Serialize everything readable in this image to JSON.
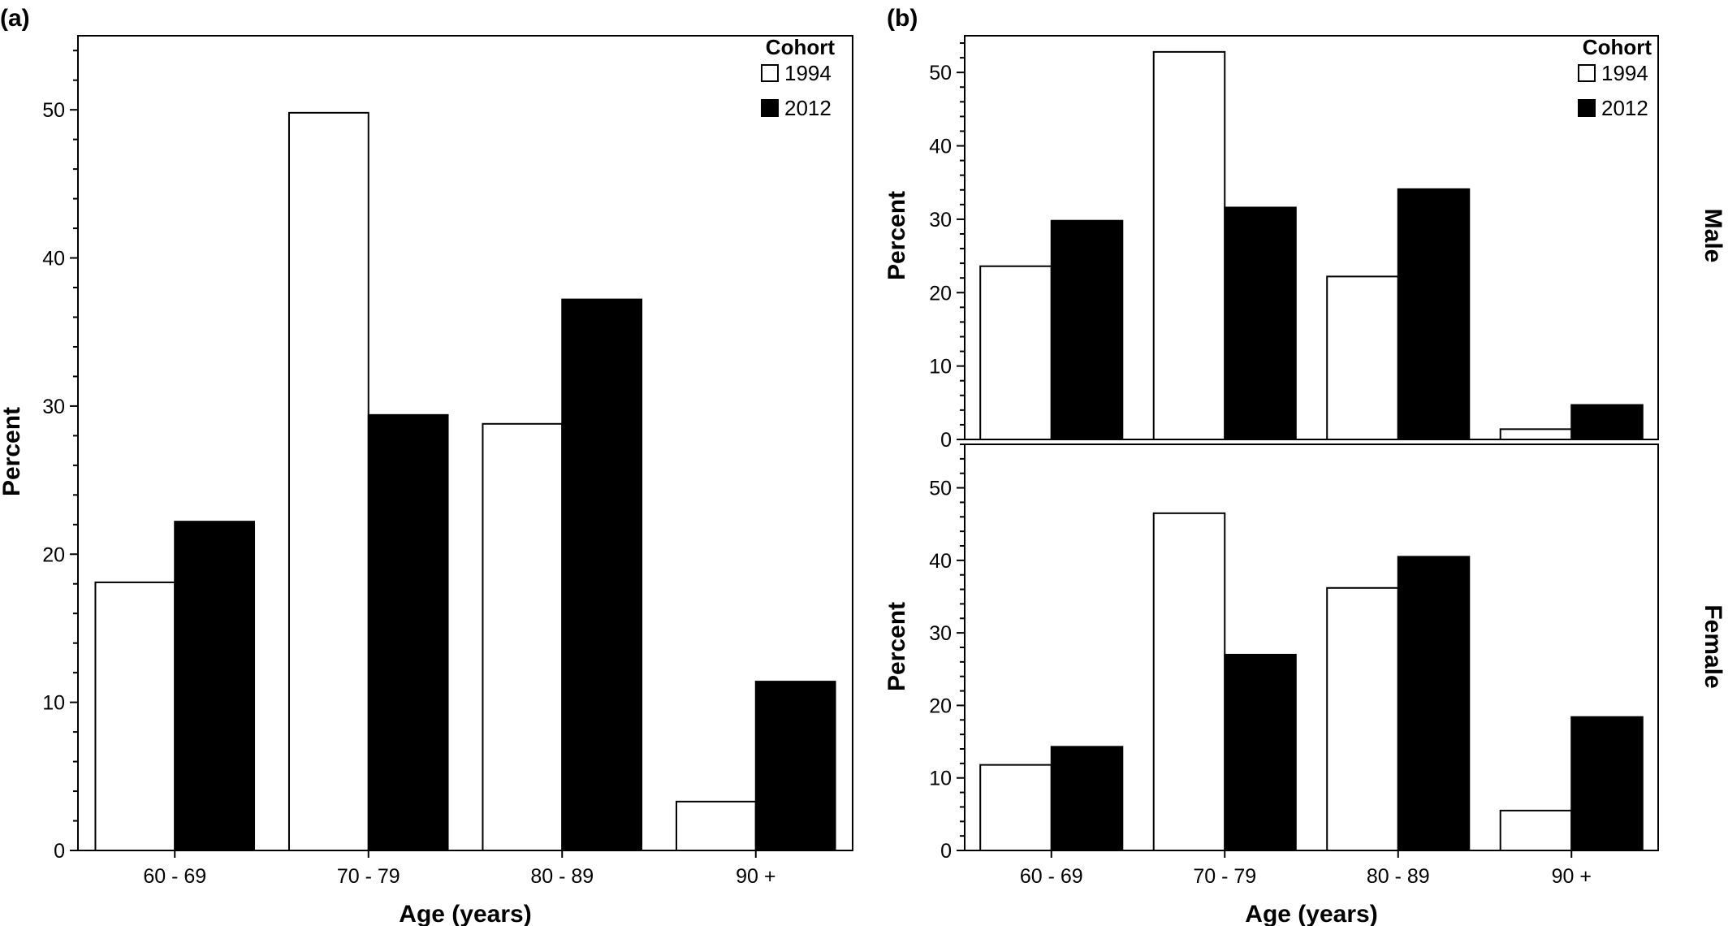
{
  "colors": {
    "cohort_1994": "#ffffff",
    "cohort_2012": "#000000"
  },
  "chart_data": [
    {
      "type": "bar",
      "panel_label": "(a)",
      "categories": [
        "60 - 69",
        "70 - 79",
        "80 - 89",
        "90 +"
      ],
      "series": [
        {
          "name": "1994",
          "values": [
            18.1,
            49.8,
            28.8,
            3.3
          ]
        },
        {
          "name": "2012",
          "values": [
            22.2,
            29.4,
            37.2,
            11.4
          ]
        }
      ],
      "xlabel": "Age (years)",
      "ylabel": "Percent",
      "ylim": [
        0,
        55
      ],
      "yticks": [
        0,
        10,
        20,
        30,
        40,
        50
      ],
      "legend": {
        "title": "Cohort",
        "placement": "top-right"
      },
      "grid": false
    },
    {
      "type": "bar",
      "panel_label": "(b)",
      "categories": [
        "60 - 69",
        "70 - 79",
        "80 - 89",
        "90 +"
      ],
      "xlabel": "Age (years)",
      "legend": {
        "title": "Cohort",
        "placement": "top-right"
      },
      "grid": false,
      "facets": [
        {
          "strip_label": "Male",
          "ylabel": "Percent",
          "ylim": [
            0,
            55
          ],
          "yticks": [
            0,
            10,
            20,
            30,
            40,
            50
          ],
          "series": [
            {
              "name": "1994",
              "values": [
                23.6,
                52.8,
                22.2,
                1.4
              ]
            },
            {
              "name": "2012",
              "values": [
                29.8,
                31.6,
                34.1,
                4.7
              ]
            }
          ]
        },
        {
          "strip_label": "Female",
          "ylabel": "Percent",
          "ylim": [
            0,
            56
          ],
          "yticks": [
            0,
            10,
            20,
            30,
            40,
            50
          ],
          "series": [
            {
              "name": "1994",
              "values": [
                11.8,
                46.5,
                36.2,
                5.5
              ]
            },
            {
              "name": "2012",
              "values": [
                14.3,
                27.0,
                40.5,
                18.4
              ]
            }
          ]
        }
      ]
    }
  ]
}
